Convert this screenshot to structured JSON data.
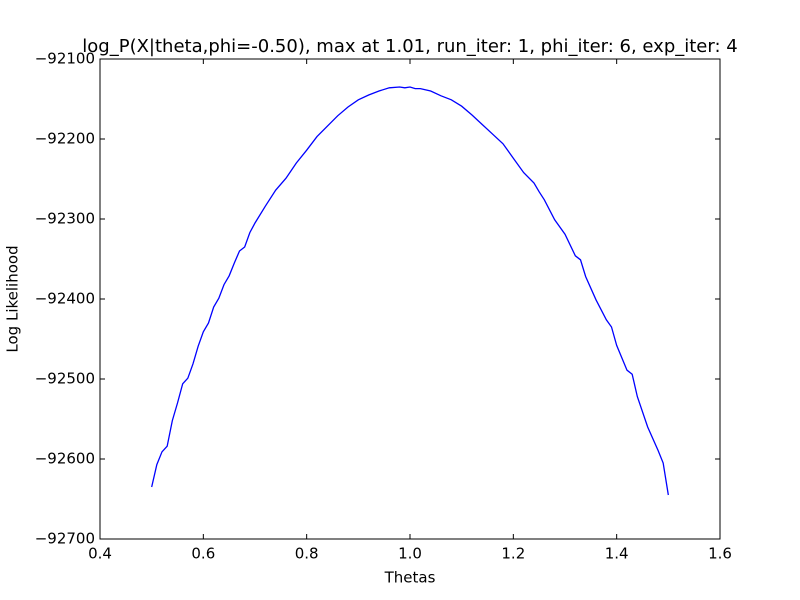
{
  "chart_data": {
    "type": "line",
    "title": "log_P(X|theta,phi=-0.50), max at 1.01, run_iter: 1, phi_iter: 6, exp_iter: 4",
    "xlabel": "Thetas",
    "ylabel": "Log Likelihood",
    "xlim": [
      0.4,
      1.6
    ],
    "ylim": [
      -92700,
      -92100
    ],
    "xticks": [
      0.4,
      0.6,
      0.8,
      {
        "value": 1,
        "label": "1.0"
      },
      1.2,
      1.4,
      1.6
    ],
    "yticks": [
      {
        "value": -92700,
        "label": "−92700"
      },
      {
        "value": -92600,
        "label": "−92600"
      },
      {
        "value": -92500,
        "label": "−92500"
      },
      {
        "value": -92400,
        "label": "−92400"
      },
      {
        "value": -92300,
        "label": "−92300"
      },
      {
        "value": -92200,
        "label": "−92200"
      },
      {
        "value": -92100,
        "label": "−92100"
      }
    ],
    "grid": false,
    "series": [
      {
        "color": "#0000ff",
        "x": [
          0.5,
          0.51,
          0.52,
          0.53,
          0.54,
          0.55,
          0.56,
          0.57,
          0.58,
          0.59,
          0.6,
          0.61,
          0.62,
          0.63,
          0.64,
          0.65,
          0.66,
          0.67,
          0.68,
          0.69,
          0.7,
          0.72,
          0.74,
          0.76,
          0.78,
          0.8,
          0.82,
          0.84,
          0.86,
          0.88,
          0.9,
          0.92,
          0.94,
          0.96,
          0.98,
          0.99,
          1.0,
          1.01,
          1.02,
          1.04,
          1.06,
          1.08,
          1.1,
          1.12,
          1.14,
          1.16,
          1.18,
          1.2,
          1.22,
          1.24,
          1.25,
          1.26,
          1.28,
          1.3,
          1.32,
          1.33,
          1.34,
          1.36,
          1.38,
          1.39,
          1.4,
          1.42,
          1.43,
          1.44,
          1.46,
          1.48,
          1.49,
          1.5
        ],
        "values": [
          -92635,
          -92607,
          -92591,
          -92584,
          -92552,
          -92530,
          -92506,
          -92499,
          -92481,
          -92459,
          -92441,
          -92430,
          -92410,
          -92399,
          -92382,
          -92371,
          -92355,
          -92340,
          -92335,
          -92317,
          -92305,
          -92284,
          -92264,
          -92249,
          -92230,
          -92214,
          -92197,
          -92184,
          -92171,
          -92160,
          -92151,
          -92145,
          -92140,
          -92136,
          -92135,
          -92136,
          -92135,
          -92137,
          -92137,
          -92140,
          -92146,
          -92151,
          -92159,
          -92170,
          -92182,
          -92194,
          -92206,
          -92224,
          -92242,
          -92255,
          -92266,
          -92276,
          -92301,
          -92319,
          -92346,
          -92351,
          -92372,
          -92401,
          -92426,
          -92435,
          -92458,
          -92489,
          -92494,
          -92522,
          -92560,
          -92589,
          -92605,
          -92645
        ]
      }
    ]
  }
}
